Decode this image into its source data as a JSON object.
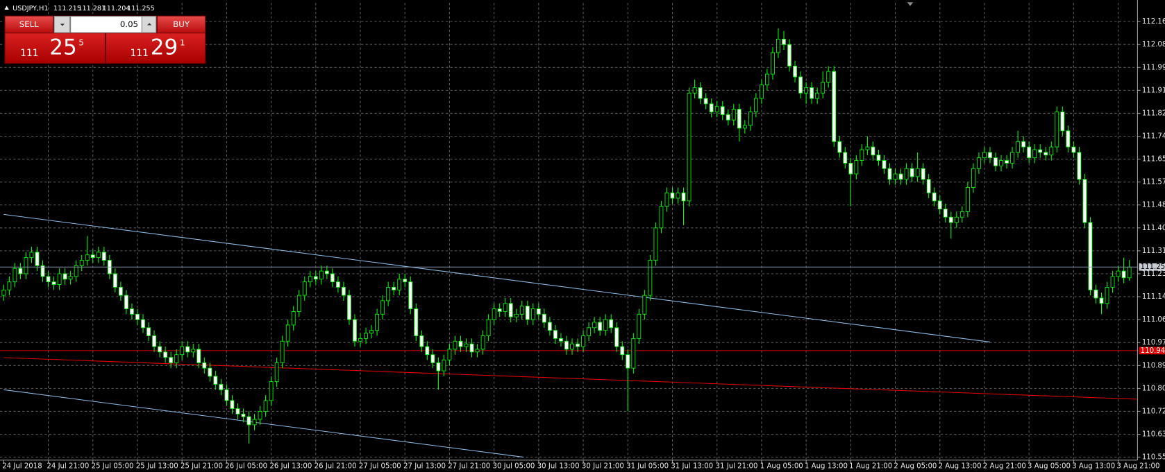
{
  "chart_data": {
    "type": "candlestick",
    "symbol": "USDJPY,H1",
    "xlim": [
      -0.667,
      203.467
    ],
    "ylim": [
      110.539,
      112.234
    ],
    "grid": true,
    "colors": {
      "background": "#000000",
      "grid": "#5c5c5c",
      "axis": "#a0a0a0",
      "wick": "#00ff00",
      "bull_body": "#000000",
      "bear_body": "#ffffff",
      "bid_line": "#8c9cae"
    },
    "yticks": [
      112.165,
      {
        "value": 112.08,
        "label": "112.080"
      },
      111.995,
      {
        "value": 111.91,
        "label": "111.910"
      },
      111.825,
      {
        "value": 111.74,
        "label": "111.740"
      },
      111.655,
      {
        "value": 111.57,
        "label": "111.570"
      },
      111.485,
      {
        "value": 111.4,
        "label": "111.400"
      },
      111.315,
      {
        "value": 111.23,
        "label": "111.230"
      },
      111.145,
      {
        "value": 111.06,
        "label": "111.060"
      },
      110.975,
      {
        "value": 110.89,
        "label": "110.890"
      },
      110.805,
      {
        "value": 110.72,
        "label": "110.720"
      },
      110.635,
      {
        "value": 110.55,
        "label": "110.550"
      }
    ],
    "xticks": [
      {
        "value": 0,
        "label": "24 Jul 2018"
      },
      {
        "value": 8,
        "label": "24 Jul 21:00"
      },
      {
        "value": 16,
        "label": "25 Jul 05:00"
      },
      {
        "value": 24,
        "label": "25 Jul 13:00"
      },
      {
        "value": 32,
        "label": "25 Jul 21:00"
      },
      {
        "value": 40,
        "label": "26 Jul 05:00"
      },
      {
        "value": 48,
        "label": "26 Jul 13:00"
      },
      {
        "value": 56,
        "label": "26 Jul 21:00"
      },
      {
        "value": 64,
        "label": "27 Jul 05:00"
      },
      {
        "value": 72,
        "label": "27 Jul 13:00"
      },
      {
        "value": 80,
        "label": "27 Jul 21:00"
      },
      {
        "value": 88,
        "label": "30 Jul 05:00"
      },
      {
        "value": 96,
        "label": "30 Jul 13:00"
      },
      {
        "value": 104,
        "label": "30 Jul 21:00"
      },
      {
        "value": 112,
        "label": "31 Jul 05:00"
      },
      {
        "value": 120,
        "label": "31 Jul 13:00"
      },
      {
        "value": 128,
        "label": "31 Jul 21:00"
      },
      {
        "value": 136,
        "label": "1 Aug 05:00"
      },
      {
        "value": 144,
        "label": "1 Aug 13:00"
      },
      {
        "value": 152,
        "label": "1 Aug 21:00"
      },
      {
        "value": 160,
        "label": "2 Aug 05:00"
      },
      {
        "value": 168,
        "label": "2 Aug 13:00"
      },
      {
        "value": 176,
        "label": "2 Aug 21:00"
      },
      {
        "value": 184,
        "label": "3 Aug 05:00"
      },
      {
        "value": 192,
        "label": "3 Aug 13:00"
      },
      {
        "value": 200,
        "label": "3 Aug 21:00"
      }
    ],
    "open": [
      111.15,
      111.17,
      111.2,
      111.25,
      111.23,
      111.29,
      111.31,
      111.26,
      111.22,
      111.2,
      111.19,
      111.23,
      111.21,
      111.22,
      111.26,
      111.28,
      111.3,
      111.29,
      111.31,
      111.28,
      111.23,
      111.18,
      111.15,
      111.1,
      111.08,
      111.06,
      111.03,
      111.0,
      110.96,
      110.94,
      110.92,
      110.9,
      110.93,
      110.96,
      110.94,
      110.95,
      110.9,
      110.88,
      110.85,
      110.82,
      110.8,
      110.76,
      110.73,
      110.71,
      110.7,
      110.67,
      110.69,
      110.72,
      110.76,
      110.83,
      110.9,
      110.98,
      111.04,
      111.09,
      111.15,
      111.2,
      111.22,
      111.21,
      111.24,
      111.23,
      111.2,
      111.18,
      111.15,
      111.06,
      110.98,
      110.99,
      111.01,
      111.02,
      111.08,
      111.13,
      111.18,
      111.17,
      111.21,
      111.2,
      111.1,
      111.0,
      110.96,
      110.93,
      110.9,
      110.87,
      110.91,
      110.95,
      110.98,
      110.96,
      110.97,
      110.94,
      110.95,
      111.0,
      111.06,
      111.1,
      111.09,
      111.12,
      111.07,
      111.08,
      111.11,
      111.06,
      111.1,
      111.08,
      111.05,
      111.02,
      110.99,
      110.98,
      110.95,
      110.97,
      110.96,
      111.0,
      111.03,
      111.05,
      111.02,
      111.06,
      111.03,
      110.96,
      110.93,
      110.88,
      110.99,
      111.08,
      111.15,
      111.28,
      111.4,
      111.48,
      111.53,
      111.51,
      111.53,
      111.5,
      111.9,
      111.92,
      111.88,
      111.86,
      111.83,
      111.85,
      111.82,
      111.8,
      111.84,
      111.77,
      111.78,
      111.83,
      111.88,
      111.93,
      111.97,
      112.05,
      112.1,
      112.08,
      112.0,
      111.96,
      111.9,
      111.92,
      111.88,
      111.9,
      111.94,
      111.98,
      111.72,
      111.68,
      111.64,
      111.6,
      111.65,
      111.69,
      111.7,
      111.67,
      111.65,
      111.62,
      111.58,
      111.6,
      111.58,
      111.62,
      111.59,
      111.62,
      111.58,
      111.53,
      111.5,
      111.47,
      111.44,
      111.42,
      111.44,
      111.46,
      111.55,
      111.62,
      111.66,
      111.68,
      111.66,
      111.63,
      111.65,
      111.64,
      111.68,
      111.72,
      111.7,
      111.66,
      111.69,
      111.68,
      111.67,
      111.7,
      111.83,
      111.76,
      111.7,
      111.68,
      111.58,
      111.42,
      111.17,
      111.14,
      111.12,
      111.18,
      111.22,
      111.24,
      111.215
    ],
    "high": [
      111.19,
      111.22,
      111.27,
      111.27,
      111.31,
      111.33,
      111.33,
      111.28,
      111.24,
      111.22,
      111.25,
      111.25,
      111.24,
      111.28,
      111.3,
      111.37,
      111.32,
      111.33,
      111.33,
      111.3,
      111.25,
      111.2,
      111.17,
      111.12,
      111.1,
      111.08,
      111.05,
      111.02,
      110.98,
      110.96,
      110.94,
      110.95,
      110.98,
      110.98,
      110.97,
      110.97,
      110.92,
      110.9,
      110.87,
      110.84,
      110.82,
      110.78,
      110.75,
      110.73,
      110.72,
      110.71,
      110.74,
      110.78,
      110.85,
      110.92,
      111.0,
      111.06,
      111.11,
      111.17,
      111.22,
      111.24,
      111.24,
      111.26,
      111.26,
      111.25,
      111.22,
      111.2,
      111.17,
      111.08,
      111.01,
      111.03,
      111.04,
      111.1,
      111.15,
      111.2,
      111.2,
      111.23,
      111.23,
      111.22,
      111.12,
      111.02,
      110.98,
      110.95,
      110.92,
      110.93,
      110.97,
      111.0,
      111.0,
      110.99,
      110.99,
      110.97,
      111.02,
      111.08,
      111.12,
      111.12,
      111.14,
      111.14,
      111.1,
      111.13,
      111.13,
      111.12,
      111.12,
      111.1,
      111.07,
      111.04,
      111.01,
      111.0,
      110.99,
      110.99,
      111.02,
      111.05,
      111.07,
      111.07,
      111.08,
      111.08,
      111.05,
      110.98,
      110.95,
      111.01,
      111.1,
      111.17,
      111.3,
      111.42,
      111.5,
      111.55,
      111.55,
      111.55,
      111.55,
      111.92,
      111.95,
      111.94,
      111.9,
      111.88,
      111.87,
      111.87,
      111.84,
      111.86,
      111.86,
      111.8,
      111.85,
      111.9,
      111.95,
      111.99,
      112.07,
      112.14,
      112.13,
      112.1,
      112.02,
      111.98,
      111.94,
      111.94,
      111.92,
      111.98,
      112.0,
      112.0,
      111.74,
      111.7,
      111.66,
      111.67,
      111.71,
      111.74,
      111.72,
      111.69,
      111.67,
      111.64,
      111.62,
      111.62,
      111.64,
      111.64,
      111.68,
      111.64,
      111.6,
      111.55,
      111.52,
      111.49,
      111.46,
      111.46,
      111.48,
      111.57,
      111.64,
      111.68,
      111.7,
      111.7,
      111.68,
      111.67,
      111.67,
      111.7,
      111.76,
      111.74,
      111.72,
      111.71,
      111.71,
      111.7,
      111.72,
      111.85,
      111.85,
      111.78,
      111.72,
      111.7,
      111.6,
      111.44,
      111.19,
      111.16,
      111.2,
      111.24,
      111.26,
      111.29,
      111.281
    ],
    "low": [
      111.13,
      111.15,
      111.18,
      111.21,
      111.21,
      111.27,
      111.24,
      111.2,
      111.18,
      111.17,
      111.17,
      111.19,
      111.19,
      111.2,
      111.24,
      111.26,
      111.27,
      111.27,
      111.26,
      111.21,
      111.16,
      111.13,
      111.08,
      111.06,
      111.04,
      111.01,
      110.98,
      110.94,
      110.92,
      110.9,
      110.88,
      110.88,
      110.91,
      110.92,
      110.92,
      110.88,
      110.86,
      110.83,
      110.8,
      110.78,
      110.74,
      110.71,
      110.69,
      110.68,
      110.6,
      110.65,
      110.67,
      110.7,
      110.74,
      110.81,
      110.88,
      110.96,
      111.02,
      111.07,
      111.13,
      111.18,
      111.19,
      111.19,
      111.21,
      111.18,
      111.16,
      111.13,
      111.04,
      110.96,
      110.96,
      110.97,
      110.99,
      111.0,
      111.06,
      111.11,
      111.15,
      111.15,
      111.18,
      111.08,
      110.98,
      110.94,
      110.91,
      110.88,
      110.8,
      110.85,
      110.89,
      110.93,
      110.94,
      110.94,
      110.92,
      110.92,
      110.93,
      110.98,
      111.04,
      111.07,
      111.07,
      111.05,
      111.05,
      111.06,
      111.04,
      111.04,
      111.06,
      111.03,
      111.0,
      110.97,
      110.96,
      110.93,
      110.93,
      110.94,
      110.94,
      110.98,
      111.01,
      111.0,
      111.0,
      111.01,
      110.94,
      110.91,
      110.72,
      110.86,
      110.97,
      111.06,
      111.13,
      111.26,
      111.38,
      111.46,
      111.49,
      111.49,
      111.41,
      111.48,
      111.88,
      111.86,
      111.84,
      111.81,
      111.81,
      111.8,
      111.78,
      111.78,
      111.72,
      111.75,
      111.76,
      111.81,
      111.86,
      111.91,
      111.95,
      112.03,
      112.06,
      111.98,
      111.94,
      111.88,
      111.86,
      111.86,
      111.86,
      111.88,
      111.92,
      111.7,
      111.66,
      111.62,
      111.48,
      111.58,
      111.63,
      111.67,
      111.65,
      111.63,
      111.6,
      111.56,
      111.56,
      111.56,
      111.56,
      111.57,
      111.57,
      111.56,
      111.51,
      111.48,
      111.45,
      111.42,
      111.36,
      111.4,
      111.42,
      111.44,
      111.53,
      111.6,
      111.64,
      111.64,
      111.61,
      111.61,
      111.62,
      111.62,
      111.66,
      111.68,
      111.64,
      111.64,
      111.66,
      111.65,
      111.65,
      111.68,
      111.74,
      111.68,
      111.66,
      111.56,
      111.4,
      111.15,
      111.12,
      111.08,
      111.1,
      111.16,
      111.2,
      111.195,
      111.204
    ],
    "close": [
      111.17,
      111.2,
      111.25,
      111.23,
      111.29,
      111.31,
      111.26,
      111.22,
      111.2,
      111.19,
      111.23,
      111.21,
      111.22,
      111.26,
      111.28,
      111.3,
      111.29,
      111.31,
      111.28,
      111.23,
      111.18,
      111.15,
      111.1,
      111.08,
      111.06,
      111.03,
      111.0,
      110.96,
      110.94,
      110.92,
      110.9,
      110.93,
      110.96,
      110.94,
      110.95,
      110.9,
      110.88,
      110.85,
      110.82,
      110.8,
      110.76,
      110.73,
      110.71,
      110.7,
      110.67,
      110.69,
      110.72,
      110.76,
      110.83,
      110.9,
      110.98,
      111.04,
      111.09,
      111.15,
      111.2,
      111.22,
      111.21,
      111.24,
      111.23,
      111.2,
      111.18,
      111.15,
      111.06,
      110.98,
      110.99,
      111.01,
      111.02,
      111.08,
      111.13,
      111.18,
      111.17,
      111.21,
      111.2,
      111.1,
      111.0,
      110.96,
      110.93,
      110.9,
      110.87,
      110.91,
      110.95,
      110.98,
      110.96,
      110.97,
      110.94,
      110.95,
      111.0,
      111.06,
      111.1,
      111.09,
      111.12,
      111.07,
      111.08,
      111.11,
      111.06,
      111.1,
      111.08,
      111.05,
      111.02,
      110.99,
      110.98,
      110.95,
      110.97,
      110.96,
      111.0,
      111.03,
      111.05,
      111.02,
      111.06,
      111.03,
      110.96,
      110.93,
      110.88,
      110.99,
      111.08,
      111.15,
      111.28,
      111.4,
      111.48,
      111.53,
      111.51,
      111.53,
      111.5,
      111.9,
      111.92,
      111.88,
      111.86,
      111.83,
      111.85,
      111.82,
      111.8,
      111.84,
      111.77,
      111.78,
      111.83,
      111.88,
      111.93,
      111.97,
      112.05,
      112.1,
      112.08,
      112.0,
      111.96,
      111.9,
      111.92,
      111.88,
      111.9,
      111.94,
      111.98,
      111.72,
      111.68,
      111.64,
      111.6,
      111.65,
      111.69,
      111.7,
      111.67,
      111.65,
      111.62,
      111.58,
      111.6,
      111.58,
      111.62,
      111.59,
      111.62,
      111.58,
      111.53,
      111.5,
      111.47,
      111.44,
      111.42,
      111.44,
      111.46,
      111.55,
      111.62,
      111.66,
      111.68,
      111.66,
      111.63,
      111.65,
      111.64,
      111.68,
      111.72,
      111.7,
      111.66,
      111.69,
      111.68,
      111.67,
      111.7,
      111.83,
      111.76,
      111.7,
      111.68,
      111.58,
      111.42,
      111.17,
      111.14,
      111.12,
      111.18,
      111.22,
      111.24,
      111.215,
      111.255
    ],
    "hlines": [
      {
        "value": 110.945,
        "color": "#e00000"
      }
    ],
    "trendlines": [
      {
        "from": [
          0,
          111.45
        ],
        "to": [
          177,
          110.977
        ],
        "color": "#8cbbe4"
      },
      {
        "from": [
          0,
          110.8
        ],
        "to": [
          93.3,
          110.55
        ],
        "color": "#8cbbe4"
      },
      {
        "from": [
          0,
          110.919
        ],
        "to": [
          203.3,
          110.765
        ],
        "color": "#e00000"
      }
    ]
  },
  "trade_panel": {
    "sell_label": "SELL",
    "buy_label": "BUY",
    "lot": "0.05",
    "sell_price": {
      "big_figure": "111",
      "pips": "25",
      "fraction": "5"
    },
    "buy_price": {
      "big_figure": "111",
      "pips": "29",
      "fraction": "1"
    }
  }
}
